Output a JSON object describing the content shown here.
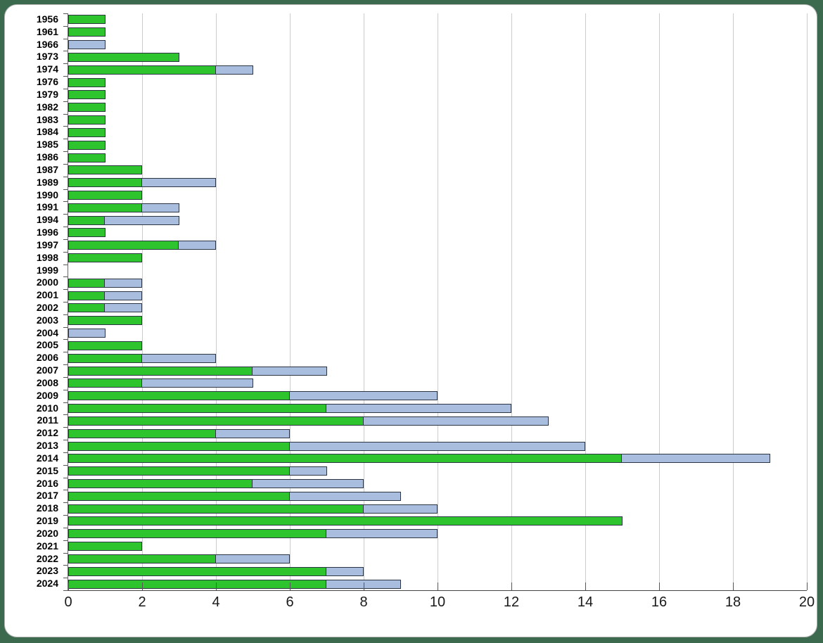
{
  "frame": {
    "background_color": "#3c6a4f",
    "panel_color": "#ffffff",
    "panel_border_color": "#b4b4b4"
  },
  "chart_data": {
    "type": "bar",
    "orientation": "horizontal",
    "stacked": true,
    "title": "",
    "xlabel": "",
    "ylabel": "",
    "legend": "none",
    "grid": "vertical",
    "xlim": [
      0,
      20
    ],
    "x_ticks": [
      0,
      2,
      4,
      6,
      8,
      10,
      12,
      14,
      16,
      18,
      20
    ],
    "categories": [
      "1956",
      "1961",
      "1966",
      "1973",
      "1974",
      "1976",
      "1979",
      "1982",
      "1983",
      "1984",
      "1985",
      "1986",
      "1987",
      "1989",
      "1990",
      "1991",
      "1994",
      "1996",
      "1997",
      "1998",
      "1999",
      "2000",
      "2001",
      "2002",
      "2003",
      "2004",
      "2005",
      "2006",
      "2007",
      "2008",
      "2009",
      "2010",
      "2011",
      "2012",
      "2013",
      "2014",
      "2015",
      "2016",
      "2017",
      "2018",
      "2019",
      "2020",
      "2021",
      "2022",
      "2023",
      "2024"
    ],
    "series": [
      {
        "name": "green",
        "color": "#2dc42d",
        "values": [
          1,
          1,
          0,
          3,
          4,
          1,
          1,
          1,
          1,
          1,
          1,
          1,
          2,
          2,
          2,
          2,
          1,
          1,
          3,
          2,
          0,
          1,
          1,
          1,
          2,
          0,
          2,
          2,
          5,
          2,
          6,
          7,
          8,
          4,
          6,
          15,
          6,
          5,
          6,
          8,
          15,
          7,
          2,
          4,
          7,
          7
        ]
      },
      {
        "name": "blue",
        "color": "#a9bdde",
        "values": [
          0,
          0,
          1,
          0,
          1,
          0,
          0,
          0,
          0,
          0,
          0,
          0,
          0,
          2,
          0,
          1,
          2,
          0,
          1,
          0,
          0,
          1,
          1,
          1,
          0,
          1,
          0,
          2,
          2,
          3,
          4,
          5,
          5,
          2,
          8,
          4,
          1,
          3,
          3,
          2,
          0,
          3,
          0,
          2,
          1,
          2
        ]
      }
    ],
    "totals": [
      1,
      1,
      1,
      3,
      5,
      1,
      1,
      1,
      1,
      1,
      1,
      1,
      2,
      4,
      2,
      3,
      3,
      1,
      4,
      2,
      0,
      2,
      2,
      2,
      2,
      1,
      2,
      4,
      7,
      5,
      10,
      12,
      13,
      6,
      14,
      19,
      7,
      8,
      9,
      10,
      15,
      10,
      2,
      6,
      8,
      9
    ],
    "bar_border_color": "#2b3544",
    "gridline_color": "#cccccc",
    "axis_color": "#555555",
    "y_label_color": "#000000",
    "x_label_color": "#1a1a1a"
  }
}
